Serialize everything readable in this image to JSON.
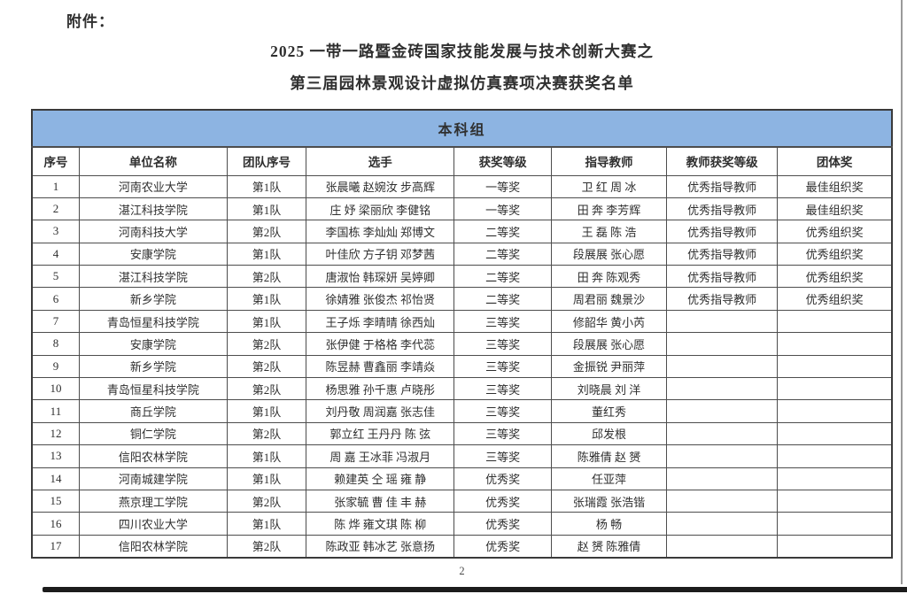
{
  "accent_colors": {
    "banner_blue": "#8DB4E2",
    "grid_line": "#4d4d4d",
    "scan_edge_dark": "#1c1c1c",
    "scan_edge_gray": "#9a9a9a"
  },
  "attachment_label": "附件：",
  "title": {
    "line1": "2025 一带一路暨金砖国家技能发展与技术创新大赛之",
    "line2": "第三届园林景观设计虚拟仿真赛项决赛获奖名单"
  },
  "table": {
    "group_header": "本科组",
    "columns": [
      "序号",
      "单位名称",
      "团队序号",
      "选手",
      "获奖等级",
      "指导教师",
      "教师获奖等级",
      "团体奖"
    ],
    "rows": [
      {
        "no": "1",
        "unit": "河南农业大学",
        "team": "第1队",
        "players": "张晨曦 赵婉汝 步高辉",
        "award": "一等奖",
        "teachers": "卫  红 周  冰",
        "teacher_award": "优秀指导教师",
        "group_award": "最佳组织奖"
      },
      {
        "no": "2",
        "unit": "湛江科技学院",
        "team": "第1队",
        "players": "庄  妤 梁丽欣 李健铭",
        "award": "一等奖",
        "teachers": "田  奔 李芳辉",
        "teacher_award": "优秀指导教师",
        "group_award": "最佳组织奖"
      },
      {
        "no": "3",
        "unit": "河南科技大学",
        "team": "第2队",
        "players": "李国栋 李灿灿 郑博文",
        "award": "二等奖",
        "teachers": "王  磊 陈  浩",
        "teacher_award": "优秀指导教师",
        "group_award": "优秀组织奖"
      },
      {
        "no": "4",
        "unit": "安康学院",
        "team": "第1队",
        "players": "叶佳欣 方子钥 邓梦茜",
        "award": "二等奖",
        "teachers": "段展展 张心愿",
        "teacher_award": "优秀指导教师",
        "group_award": "优秀组织奖"
      },
      {
        "no": "5",
        "unit": "湛江科技学院",
        "team": "第2队",
        "players": "唐淑怡 韩琛妍 吴婷卿",
        "award": "二等奖",
        "teachers": "田  奔 陈观秀",
        "teacher_award": "优秀指导教师",
        "group_award": "优秀组织奖"
      },
      {
        "no": "6",
        "unit": "新乡学院",
        "team": "第1队",
        "players": "徐婧雅 张俊杰 祁怡贤",
        "award": "二等奖",
        "teachers": "周君丽 魏景沙",
        "teacher_award": "优秀指导教师",
        "group_award": "优秀组织奖"
      },
      {
        "no": "7",
        "unit": "青岛恒星科技学院",
        "team": "第1队",
        "players": "王子烁 李晴晴 徐西灿",
        "award": "三等奖",
        "teachers": "修韶华 黄小芮",
        "teacher_award": "",
        "group_award": ""
      },
      {
        "no": "8",
        "unit": "安康学院",
        "team": "第2队",
        "players": "张伊健 于格格 李代蕊",
        "award": "三等奖",
        "teachers": "段展展 张心愿",
        "teacher_award": "",
        "group_award": ""
      },
      {
        "no": "9",
        "unit": "新乡学院",
        "team": "第2队",
        "players": "陈昱赫 曹鑫丽 李靖焱",
        "award": "三等奖",
        "teachers": "金振锐 尹丽萍",
        "teacher_award": "",
        "group_award": ""
      },
      {
        "no": "10",
        "unit": "青岛恒星科技学院",
        "team": "第2队",
        "players": "杨思雅 孙千惠 卢晓彤",
        "award": "三等奖",
        "teachers": "刘晓晨 刘  洋",
        "teacher_award": "",
        "group_award": ""
      },
      {
        "no": "11",
        "unit": "商丘学院",
        "team": "第1队",
        "players": "刘丹敬 周润嘉 张志佳",
        "award": "三等奖",
        "teachers": "董红秀",
        "teacher_award": "",
        "group_award": ""
      },
      {
        "no": "12",
        "unit": "铜仁学院",
        "team": "第2队",
        "players": "郭立红 王丹丹 陈  弦",
        "award": "三等奖",
        "teachers": "邱发根",
        "teacher_award": "",
        "group_award": ""
      },
      {
        "no": "13",
        "unit": "信阳农林学院",
        "team": "第1队",
        "players": "周  嘉 王冰菲 冯淑月",
        "award": "三等奖",
        "teachers": "陈雅倩 赵  赟",
        "teacher_award": "",
        "group_award": ""
      },
      {
        "no": "14",
        "unit": "河南城建学院",
        "team": "第1队",
        "players": "赖建英 仝  瑶 雍  静",
        "award": "优秀奖",
        "teachers": "任亚萍",
        "teacher_award": "",
        "group_award": ""
      },
      {
        "no": "15",
        "unit": "燕京理工学院",
        "team": "第2队",
        "players": "张家毓 曹  佳 丰  赫",
        "award": "优秀奖",
        "teachers": "张瑞霞 张浩锴",
        "teacher_award": "",
        "group_award": ""
      },
      {
        "no": "16",
        "unit": "四川农业大学",
        "team": "第1队",
        "players": "陈  烨 雍文琪 陈  柳",
        "award": "优秀奖",
        "teachers": "杨  畅",
        "teacher_award": "",
        "group_award": ""
      },
      {
        "no": "17",
        "unit": "信阳农林学院",
        "team": "第2队",
        "players": "陈政亚 韩冰艺 张意扬",
        "award": "优秀奖",
        "teachers": "赵  赟 陈雅倩",
        "teacher_award": "",
        "group_award": ""
      }
    ]
  },
  "page_number": "2"
}
